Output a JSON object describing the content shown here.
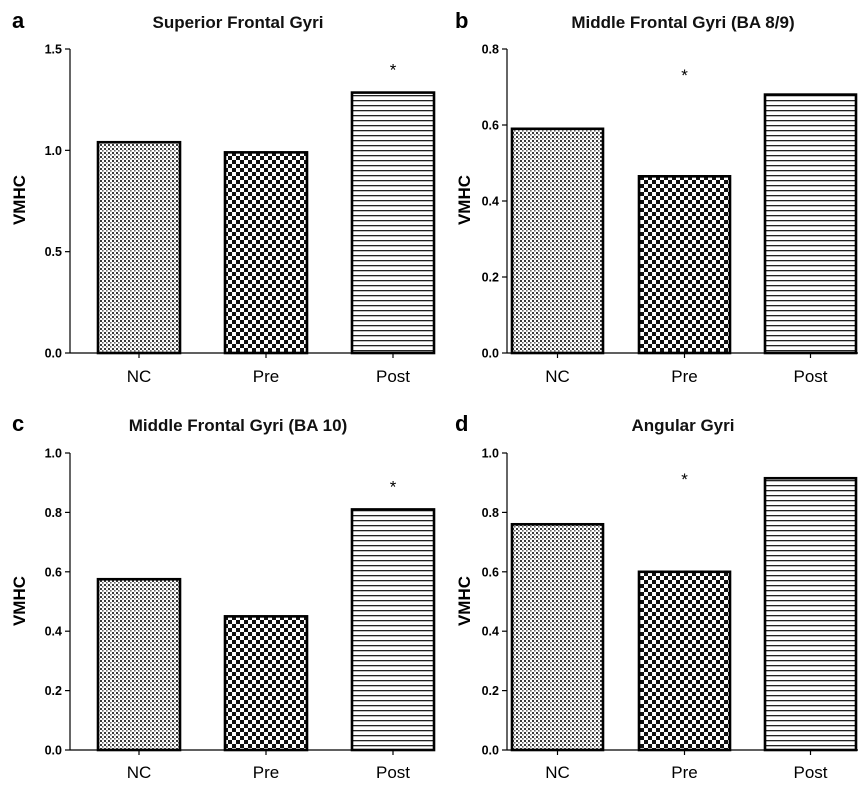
{
  "chart_data": [
    {
      "panel": "a",
      "type": "bar",
      "title": "Superior Frontal Gyri",
      "ylabel": "VMHC",
      "categories": [
        "NC",
        "Pre",
        "Post"
      ],
      "values": [
        1.04,
        0.99,
        1.285
      ],
      "ylim": [
        0,
        1.5
      ],
      "yticks": [
        "0.0",
        "0.5",
        "1.0",
        "1.5"
      ],
      "patterns": [
        "dots",
        "checker",
        "hstripes"
      ],
      "significance": [
        "",
        "",
        "*"
      ]
    },
    {
      "panel": "b",
      "type": "bar",
      "title": "Middle Frontal Gyri (BA 8/9)",
      "ylabel": "VMHC",
      "categories": [
        "NC",
        "Pre",
        "Post"
      ],
      "values": [
        0.59,
        0.465,
        0.68
      ],
      "ylim": [
        0,
        0.8
      ],
      "yticks": [
        "0.0",
        "0.2",
        "0.4",
        "0.6",
        "0.8"
      ],
      "patterns": [
        "dots",
        "checker",
        "hstripes"
      ],
      "significance": [
        "",
        "*",
        ""
      ]
    },
    {
      "panel": "c",
      "type": "bar",
      "title": "Middle Frontal Gyri (BA 10)",
      "ylabel": "VMHC",
      "categories": [
        "NC",
        "Pre",
        "Post"
      ],
      "values": [
        0.575,
        0.45,
        0.81
      ],
      "ylim": [
        0,
        1.0
      ],
      "yticks": [
        "0.0",
        "0.2",
        "0.4",
        "0.6",
        "0.8",
        "1.0"
      ],
      "patterns": [
        "dots",
        "checker",
        "hstripes"
      ],
      "significance": [
        "",
        "",
        "*"
      ]
    },
    {
      "panel": "d",
      "type": "bar",
      "title": "Angular Gyri",
      "ylabel": "VMHC",
      "categories": [
        "NC",
        "Pre",
        "Post"
      ],
      "values": [
        0.76,
        0.6,
        0.915
      ],
      "ylim": [
        0,
        1.0
      ],
      "yticks": [
        "0.0",
        "0.2",
        "0.4",
        "0.6",
        "0.8",
        "1.0"
      ],
      "patterns": [
        "dots",
        "checker",
        "hstripes"
      ],
      "significance": [
        "",
        "*",
        ""
      ]
    }
  ]
}
